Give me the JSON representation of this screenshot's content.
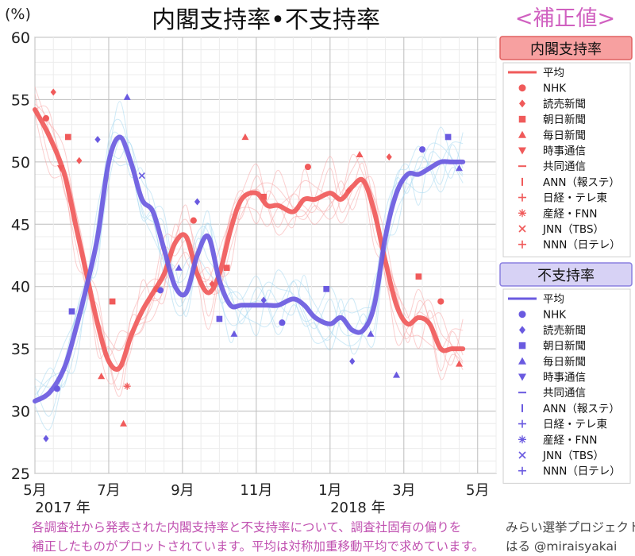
{
  "chart_data": {
    "type": "line",
    "title": "内閣支持率•不支持率",
    "subtitle": "<補正値>",
    "ylabel": "(%)",
    "ylim": [
      25,
      60
    ],
    "yticks": [
      25,
      30,
      35,
      40,
      45,
      50,
      55,
      60
    ],
    "xlim": [
      0,
      12.5
    ],
    "x_ticks": [
      {
        "x": 0,
        "label": "5月",
        "sub": "2017 年"
      },
      {
        "x": 2,
        "label": "7月",
        "sub": ""
      },
      {
        "x": 4,
        "label": "9月",
        "sub": ""
      },
      {
        "x": 6,
        "label": "11月",
        "sub": ""
      },
      {
        "x": 8,
        "label": "1月",
        "sub": "2018 年"
      },
      {
        "x": 10,
        "label": "3月",
        "sub": ""
      },
      {
        "x": 12,
        "label": "5月",
        "sub": ""
      }
    ],
    "grid": true,
    "legend_placement": "right",
    "colors": {
      "approval": "#f05a5a",
      "disapproval": "#6a5ae0",
      "approval_faint": "#f7a8a8",
      "disapproval_faint": "#a8d8f0"
    },
    "series": [
      {
        "group": "approval",
        "name": "平均",
        "x": [
          0,
          0.4,
          0.8,
          1.1,
          1.4,
          1.7,
          2.0,
          2.3,
          2.6,
          2.9,
          3.2,
          3.5,
          3.8,
          4.1,
          4.4,
          4.7,
          5.0,
          5.3,
          5.6,
          6.0,
          6.3,
          6.6,
          7.0,
          7.3,
          7.6,
          8.0,
          8.3,
          8.6,
          8.9,
          9.2,
          9.5,
          9.8,
          10.1,
          10.4,
          10.7,
          11.0,
          11.3,
          11.6
        ],
        "values": [
          54.2,
          52,
          49,
          45,
          41,
          37,
          34,
          33.5,
          36,
          38,
          39.5,
          41,
          43.5,
          44,
          41,
          39.5,
          41,
          44.5,
          47,
          47.5,
          46.5,
          46.5,
          46,
          47,
          47,
          47.5,
          47,
          48,
          48.5,
          46,
          42,
          38.5,
          37,
          37.5,
          37,
          35,
          35,
          35
        ]
      },
      {
        "group": "disapproval",
        "name": "平均",
        "x": [
          0,
          0.4,
          0.8,
          1.1,
          1.4,
          1.7,
          2.0,
          2.3,
          2.6,
          2.9,
          3.2,
          3.5,
          3.8,
          4.1,
          4.4,
          4.7,
          5.0,
          5.3,
          5.6,
          6.0,
          6.3,
          6.6,
          7.0,
          7.3,
          7.6,
          8.0,
          8.3,
          8.6,
          8.9,
          9.2,
          9.5,
          9.8,
          10.1,
          10.4,
          10.7,
          11.0,
          11.3,
          11.6
        ],
        "values": [
          30.8,
          31.5,
          33.5,
          36.5,
          40,
          44,
          50,
          52,
          50,
          47,
          46,
          43,
          40,
          39.5,
          42.5,
          44,
          40.5,
          38.5,
          38.5,
          38.5,
          38.5,
          38.5,
          39,
          38.5,
          37.5,
          37,
          37.5,
          36.5,
          36.5,
          38.5,
          44,
          47.5,
          49,
          49,
          49.5,
          50,
          50,
          50
        ]
      }
    ],
    "legend": {
      "approval": {
        "title": "内閣支持率",
        "items": [
          {
            "marker": "line",
            "label": "平均"
          },
          {
            "marker": "circle",
            "label": "NHK"
          },
          {
            "marker": "diamond",
            "label": "読売新聞"
          },
          {
            "marker": "square",
            "label": "朝日新聞"
          },
          {
            "marker": "triangle",
            "label": "毎日新聞"
          },
          {
            "marker": "tri-down",
            "label": "時事通信"
          },
          {
            "marker": "dash",
            "label": "共同通信"
          },
          {
            "marker": "vbar",
            "label": "ANN（報ステ）"
          },
          {
            "marker": "plus",
            "label": "日経・テレ東"
          },
          {
            "marker": "star",
            "label": "産経・FNN"
          },
          {
            "marker": "cross",
            "label": "JNN（TBS）"
          },
          {
            "marker": "plus",
            "label": "NNN（日テレ）"
          }
        ]
      },
      "disapproval": {
        "title": "不支持率",
        "items": [
          {
            "marker": "line",
            "label": "平均"
          },
          {
            "marker": "circle",
            "label": "NHK"
          },
          {
            "marker": "diamond",
            "label": "読売新聞"
          },
          {
            "marker": "square",
            "label": "朝日新聞"
          },
          {
            "marker": "triangle",
            "label": "毎日新聞"
          },
          {
            "marker": "tri-down",
            "label": "時事通信"
          },
          {
            "marker": "dash",
            "label": "共同通信"
          },
          {
            "marker": "vbar",
            "label": "ANN（報ステ）"
          },
          {
            "marker": "plus",
            "label": "日経・テレ東"
          },
          {
            "marker": "star",
            "label": "産経・FNN"
          },
          {
            "marker": "cross",
            "label": "JNN（TBS）"
          },
          {
            "marker": "plus",
            "label": "NNN（日テレ）"
          }
        ]
      }
    },
    "points": {
      "approval": [
        {
          "x": 0.3,
          "y": 53.5,
          "m": "circle"
        },
        {
          "x": 0.5,
          "y": 55.6,
          "m": "diamond"
        },
        {
          "x": 0.9,
          "y": 52.0,
          "m": "square"
        },
        {
          "x": 1.2,
          "y": 50.1,
          "m": "diamond"
        },
        {
          "x": 0.7,
          "y": 49.5,
          "m": "tri-down"
        },
        {
          "x": 1.8,
          "y": 32.8,
          "m": "triangle"
        },
        {
          "x": 2.1,
          "y": 38.8,
          "m": "square"
        },
        {
          "x": 2.4,
          "y": 29.0,
          "m": "triangle"
        },
        {
          "x": 2.5,
          "y": 32.0,
          "m": "star"
        },
        {
          "x": 3.3,
          "y": 39.8,
          "m": "circle"
        },
        {
          "x": 4.3,
          "y": 45.3,
          "m": "circle"
        },
        {
          "x": 4.8,
          "y": 40.2,
          "m": "diamond"
        },
        {
          "x": 5.2,
          "y": 41.5,
          "m": "square"
        },
        {
          "x": 5.7,
          "y": 52.0,
          "m": "triangle"
        },
        {
          "x": 6.2,
          "y": 47.2,
          "m": "square"
        },
        {
          "x": 7.4,
          "y": 49.6,
          "m": "circle"
        },
        {
          "x": 8.5,
          "y": 47.7,
          "m": "diamond"
        },
        {
          "x": 8.8,
          "y": 50.6,
          "m": "triangle"
        },
        {
          "x": 9.6,
          "y": 50.4,
          "m": "diamond"
        },
        {
          "x": 10.4,
          "y": 40.8,
          "m": "square"
        },
        {
          "x": 11.0,
          "y": 38.8,
          "m": "circle"
        },
        {
          "x": 11.5,
          "y": 33.8,
          "m": "triangle"
        }
      ],
      "disapproval": [
        {
          "x": 0.3,
          "y": 27.8,
          "m": "diamond"
        },
        {
          "x": 0.6,
          "y": 31.8,
          "m": "circle"
        },
        {
          "x": 1.0,
          "y": 38.0,
          "m": "square"
        },
        {
          "x": 1.7,
          "y": 51.8,
          "m": "diamond"
        },
        {
          "x": 2.5,
          "y": 55.2,
          "m": "triangle"
        },
        {
          "x": 2.9,
          "y": 48.9,
          "m": "cross"
        },
        {
          "x": 3.4,
          "y": 39.7,
          "m": "circle"
        },
        {
          "x": 3.9,
          "y": 41.5,
          "m": "triangle"
        },
        {
          "x": 4.4,
          "y": 46.8,
          "m": "diamond"
        },
        {
          "x": 5.0,
          "y": 37.4,
          "m": "square"
        },
        {
          "x": 5.4,
          "y": 36.2,
          "m": "triangle"
        },
        {
          "x": 6.2,
          "y": 38.9,
          "m": "diamond"
        },
        {
          "x": 6.7,
          "y": 37.1,
          "m": "circle"
        },
        {
          "x": 7.9,
          "y": 39.8,
          "m": "square"
        },
        {
          "x": 8.6,
          "y": 34.0,
          "m": "diamond"
        },
        {
          "x": 9.1,
          "y": 36.2,
          "m": "triangle"
        },
        {
          "x": 9.8,
          "y": 32.9,
          "m": "triangle"
        },
        {
          "x": 10.5,
          "y": 51.0,
          "m": "circle"
        },
        {
          "x": 11.2,
          "y": 52.0,
          "m": "square"
        },
        {
          "x": 11.5,
          "y": 49.5,
          "m": "triangle"
        }
      ]
    }
  },
  "footer": {
    "note_line1": "各調査社から発表された内閣支持率と不支持率について、調査社固有の偏りを",
    "note_line2": "補正したものがプロットされています。平均は対称加重移動平均で求めています。",
    "credit_line1": "みらい選挙プロジェクト",
    "credit_line2": "はる @miraisyakai"
  }
}
